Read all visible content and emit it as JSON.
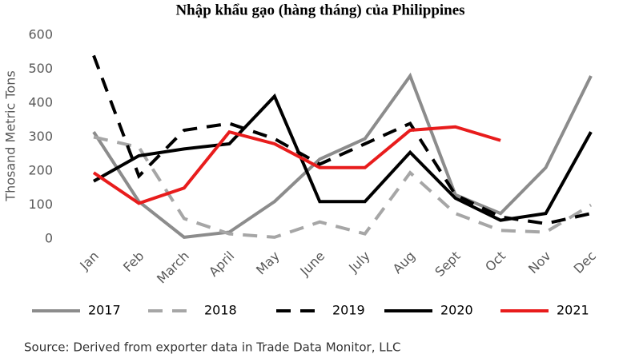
{
  "chart_data": {
    "type": "line",
    "title": "Nhập khẩu gạo (hàng tháng) của Philippines",
    "y_label": "Thosand Metric Tons",
    "source": "Source: Derived from exporter data in Trade Data Monitor, LLC",
    "categories": [
      "Jan",
      "Feb",
      "March",
      "April",
      "May",
      "June",
      "July",
      "Aug",
      "Sept",
      "Oct",
      "Nov",
      "Dec"
    ],
    "ylim": [
      0,
      600
    ],
    "yticks": [
      0,
      100,
      200,
      300,
      400,
      500,
      600
    ],
    "grid": false,
    "series": [
      {
        "name": "2017",
        "color": "#8c8c8c",
        "dash": false,
        "values": [
          315,
          110,
          5,
          20,
          110,
          235,
          295,
          480,
          130,
          75,
          210,
          480
        ]
      },
      {
        "name": "2018",
        "color": "#a6a6a6",
        "dash": true,
        "values": [
          300,
          270,
          60,
          15,
          5,
          50,
          15,
          195,
          75,
          25,
          20,
          100
        ]
      },
      {
        "name": "2019",
        "color": "#000000",
        "dash": true,
        "values": [
          540,
          185,
          320,
          340,
          295,
          220,
          280,
          340,
          130,
          65,
          45,
          75
        ]
      },
      {
        "name": "2020",
        "color": "#000000",
        "dash": false,
        "values": [
          170,
          245,
          265,
          280,
          420,
          110,
          110,
          255,
          120,
          55,
          75,
          315
        ]
      },
      {
        "name": "2021",
        "color": "#e81c1c",
        "dash": false,
        "values": [
          195,
          105,
          150,
          315,
          280,
          210,
          210,
          320,
          330,
          290,
          null,
          null
        ]
      }
    ]
  }
}
